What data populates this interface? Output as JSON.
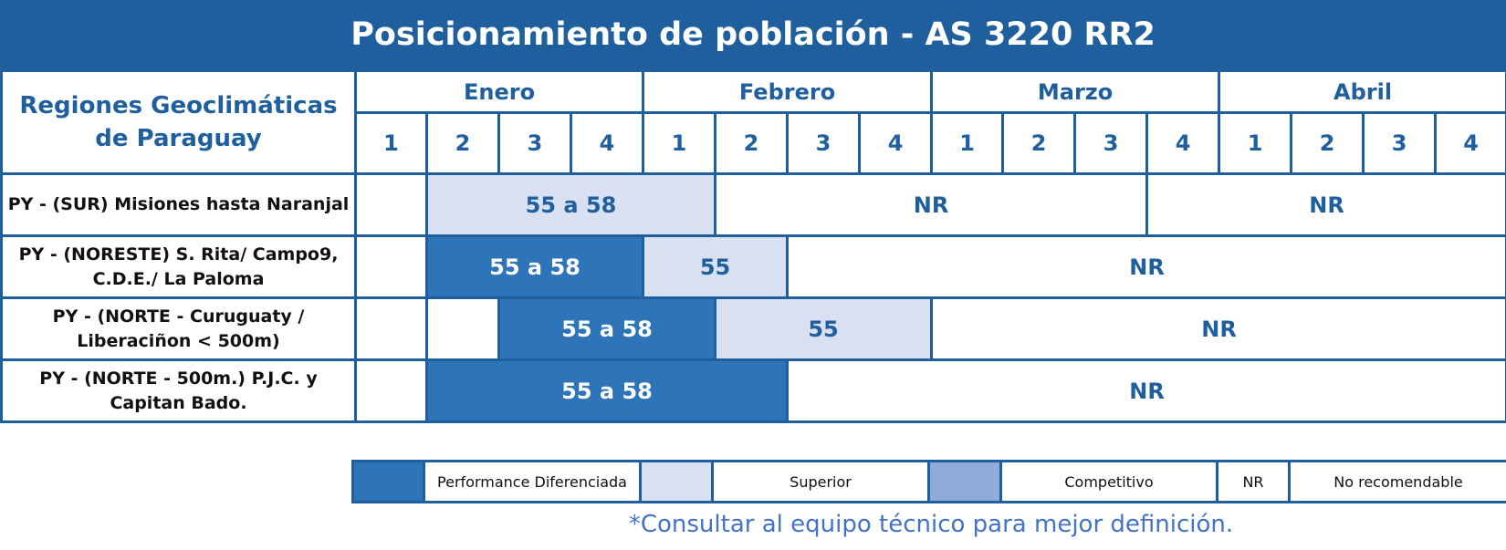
{
  "title": "Posicionamiento de población - AS 3220 RR2",
  "header": {
    "region_label": "Regiones Geoclimáticas de Paraguay",
    "months": [
      "Enero",
      "Febrero",
      "Marzo",
      "Abril"
    ],
    "weeks": [
      "1",
      "2",
      "3",
      "4",
      "1",
      "2",
      "3",
      "4",
      "1",
      "2",
      "3",
      "4",
      "1",
      "2",
      "3",
      "4"
    ]
  },
  "rows": [
    {
      "label": "PY - (SUR) Misiones hasta Naranjal",
      "cells": [
        {
          "category": "blank",
          "text": "",
          "span": 1
        },
        {
          "category": "superior",
          "text": "55 a 58",
          "span": 4
        },
        {
          "category": "nr",
          "text": "NR",
          "span": 6
        },
        {
          "category": "nr",
          "text": "NR",
          "span": 5
        }
      ]
    },
    {
      "label": "PY - (NORESTE) S. Rita/ Campo9, C.D.E./ La Paloma",
      "cells": [
        {
          "category": "blank",
          "text": "",
          "span": 1
        },
        {
          "category": "performance",
          "text": "55 a 58",
          "span": 3
        },
        {
          "category": "superior",
          "text": "55",
          "span": 2
        },
        {
          "category": "nr",
          "text": "NR",
          "span": 10
        }
      ]
    },
    {
      "label": "PY - (NORTE - Curuguaty / Liberaciñon <  500m)",
      "cells": [
        {
          "category": "blank",
          "text": "",
          "span": 1
        },
        {
          "category": "blank",
          "text": "",
          "span": 1
        },
        {
          "category": "performance",
          "text": "55 a 58",
          "span": 3
        },
        {
          "category": "superior",
          "text": "55",
          "span": 3
        },
        {
          "category": "nr",
          "text": "NR",
          "span": 8
        }
      ]
    },
    {
      "label": "PY - (NORTE - 500m.) P.J.C. y Capitan Bado.",
      "cells": [
        {
          "category": "blank",
          "text": "",
          "span": 1
        },
        {
          "category": "performance",
          "text": "55 a 58",
          "span": 5
        },
        {
          "category": "nr",
          "text": "NR",
          "span": 10
        }
      ]
    }
  ],
  "legend": {
    "performance": "Performance Diferenciada",
    "superior": "Superior",
    "competitive": "Competitivo",
    "nr_code": "NR",
    "nr_label": "No recomendable"
  },
  "colors": {
    "header_blue": "#1f5f9e",
    "performance": "#2e74b8",
    "superior": "#d9e0f2",
    "competitive": "#8fabd9",
    "footnote": "#4472c4"
  },
  "footnote": "*Consultar al equipo técnico para mejor definición."
}
